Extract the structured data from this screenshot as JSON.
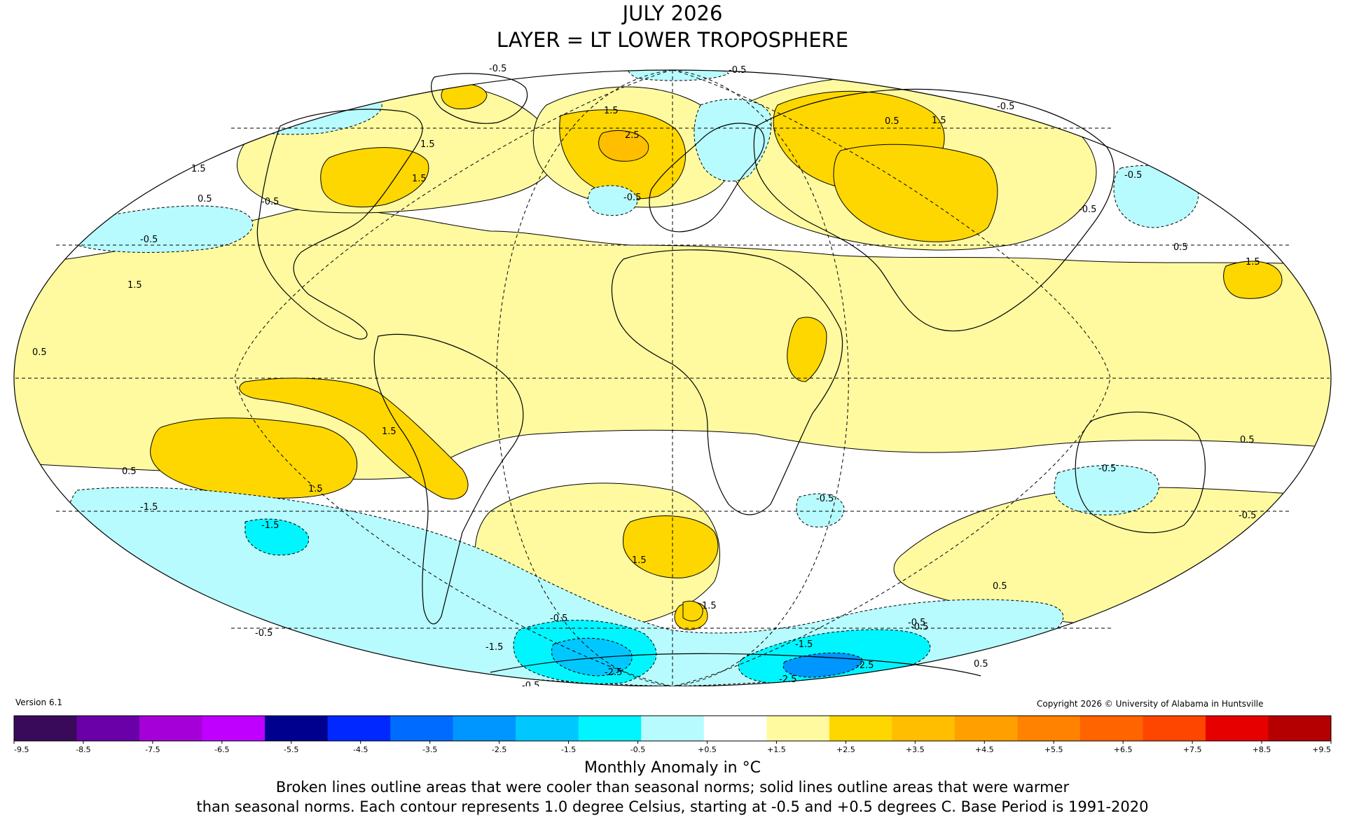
{
  "title": {
    "line1": "JULY 2026",
    "line2": "LAYER = LT LOWER TROPOSPHERE"
  },
  "version": "Version 6.1",
  "copyright": "Copyright 2026 © University of Alabama in Huntsville",
  "colorbar": {
    "label": "Monthly Anomaly in °C",
    "ticks": [
      "-9.5",
      "-8.5",
      "-7.5",
      "-6.5",
      "-5.5",
      "-4.5",
      "-3.5",
      "-2.5",
      "-1.5",
      "-0.5",
      "+0.5",
      "+1.5",
      "+2.5",
      "+3.5",
      "+4.5",
      "+5.5",
      "+6.5",
      "+7.5",
      "+8.5",
      "+9.5"
    ],
    "colors": [
      "#3a0a5a",
      "#6a00a8",
      "#a500d8",
      "#c000ff",
      "#00008f",
      "#0028ff",
      "#006cff",
      "#0096ff",
      "#00c8ff",
      "#00f5ff",
      "#b8fbff",
      "#ffffff",
      "#fffaa0",
      "#ffd700",
      "#ffbe00",
      "#ffa000",
      "#ff8200",
      "#ff6400",
      "#ff4600",
      "#e60000",
      "#b40000"
    ]
  },
  "footnote": {
    "line1": "Broken lines outline areas that were cooler than seasonal norms; solid lines outline areas that were warmer",
    "line2": "than seasonal norms. Each contour represents 1.0 degree Celsius, starting at -0.5 and +0.5 degrees C. Base Period is 1991-2020"
  },
  "contour_labels": {
    "l1": "-0.5",
    "l2": "-0.5",
    "l3": "1.5",
    "l4": "2.5",
    "l5": "0.5",
    "l6": "1.5",
    "l7": "-0.5",
    "l8": "-0.5",
    "l9": "-0.5",
    "l10": "1.5",
    "l11": "0.5",
    "l12": "-0.5",
    "l13": "0.5",
    "l14": "1.5",
    "l15": "1.5",
    "l16": "1.5",
    "l17": "0.5",
    "l18": "1.5",
    "l19": "-0.5",
    "l20": "-1.5",
    "l21": "-1.5",
    "l22": "1.5",
    "l23": "-0.5",
    "l24": "1.5",
    "l25": "-1.5",
    "l26": "-0.5",
    "l27": "-2.5",
    "l28": "1.5",
    "l29": "-0.5",
    "l30": "0.5",
    "l31": "-0.5",
    "l32": "-1.5",
    "l33": "-2.5",
    "l34": "-2.5",
    "l35": "-0.5",
    "l36": "0.5",
    "l37": "0.5",
    "l38": "-0.5",
    "l39": "-0.5",
    "l40": "-0.5",
    "l41": "-0.5",
    "l42": "1.5",
    "l43": "0.5"
  }
}
